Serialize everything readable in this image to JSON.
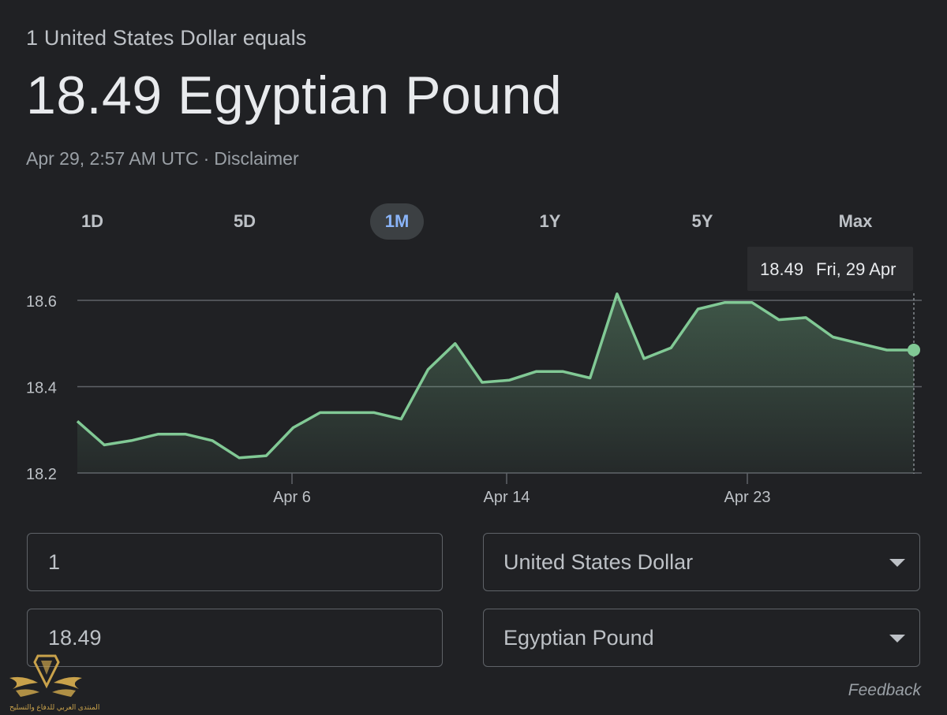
{
  "header": {
    "subtitle": "1 United States Dollar equals",
    "value": "18.49 Egyptian Pound",
    "timestamp": "Apr 29, 2:57 AM UTC",
    "separator": "·",
    "disclaimer": "Disclaimer"
  },
  "range_tabs": [
    "1D",
    "5D",
    "1M",
    "1Y",
    "5Y",
    "Max"
  ],
  "active_range": "1M",
  "tooltip": {
    "value": "18.49",
    "date": "Fri, 29 Apr"
  },
  "chart_data": {
    "type": "area",
    "x_tick_labels": [
      "Apr 6",
      "Apr 14",
      "Apr 23"
    ],
    "y_tick_labels": [
      "18.6",
      "18.4",
      "18.2"
    ],
    "ylim": [
      18.2,
      18.6
    ],
    "series": [
      {
        "values": [
          18.32,
          18.265,
          18.275,
          18.29,
          18.29,
          18.275,
          18.235,
          18.24,
          18.305,
          18.34,
          18.34,
          18.34,
          18.325,
          18.44,
          18.5,
          18.41,
          18.415,
          18.435,
          18.435,
          18.42,
          18.615,
          18.465,
          18.49,
          18.58,
          18.595,
          18.595,
          18.555,
          18.56,
          18.515,
          18.5,
          18.485,
          18.485
        ]
      }
    ],
    "grid": true,
    "line_color": "#81c995"
  },
  "converter": {
    "from_amount": "1",
    "from_currency": "United States Dollar",
    "to_amount": "18.49",
    "to_currency": "Egyptian Pound"
  },
  "feedback_label": "Feedback",
  "watermark_text": "المنتدى العربي للدفاع والتسليح"
}
